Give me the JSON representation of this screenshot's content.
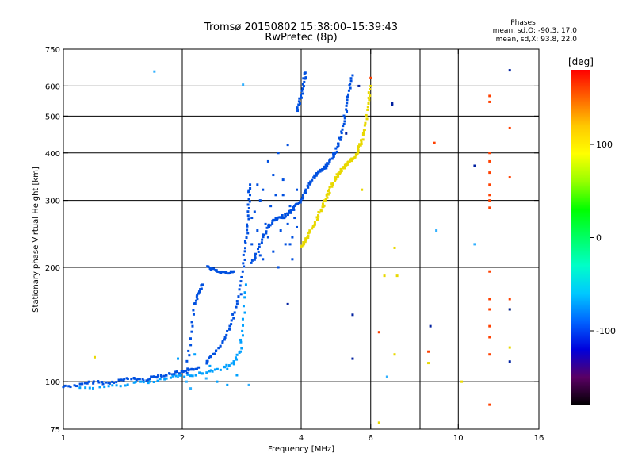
{
  "header": {
    "title_line1": "Tromsø 20150802 15:38:00–15:39:43",
    "title_line2": "RwPretec (8p)",
    "phases_heading": "Phases",
    "phase_o": "mean, sd,O: -90.3, 17.0",
    "phase_x": "mean, sd,X: 93.8, 22.0"
  },
  "chart_data": {
    "type": "scatter",
    "xlabel": "Frequency [MHz]",
    "ylabel": "Stationary phase Virtual Height [km]",
    "x_scale": "log",
    "y_scale": "log",
    "xlim": [
      1,
      16
    ],
    "ylim": [
      75,
      750
    ],
    "x_ticks": [
      1,
      2,
      4,
      6,
      10,
      16
    ],
    "x_tick_labels": [
      "1",
      "2",
      "4",
      "6",
      "10",
      "16"
    ],
    "x_gridlines": [
      2,
      4,
      6,
      8,
      10
    ],
    "y_ticks": [
      75,
      100,
      200,
      300,
      400,
      500,
      600,
      750
    ],
    "y_tick_labels": [
      "75",
      "100",
      "200",
      "300",
      "400",
      "500",
      "600",
      "750"
    ],
    "y_gridlines": [
      100,
      200,
      300,
      400,
      500,
      600
    ],
    "grid": true,
    "colorbar": {
      "label": "[deg]",
      "range": [
        -180,
        180
      ],
      "ticks": [
        100,
        0,
        -100
      ],
      "tick_labels": [
        "100",
        "0",
        "-100"
      ],
      "colors": [
        "#000000",
        "#5a0064",
        "#0000dc",
        "#0064ff",
        "#00c8ff",
        "#00ffc8",
        "#00ff64",
        "#00ff00",
        "#96ff00",
        "#ffff00",
        "#ffc800",
        "#ff6400",
        "#ff0000"
      ]
    },
    "series": [
      {
        "color": "#0050e0",
        "traces": [
          [
            [
              1.0,
              97
            ],
            [
              1.1,
              98
            ],
            [
              1.2,
              100
            ],
            [
              1.3,
              99
            ],
            [
              1.4,
              101
            ],
            [
              1.5,
              102
            ],
            [
              1.6,
              101
            ],
            [
              1.7,
              103
            ],
            [
              1.8,
              104
            ],
            [
              1.9,
              105
            ],
            [
              2.0,
              106
            ],
            [
              2.1,
              107
            ],
            [
              2.2,
              109
            ]
          ],
          [
            [
              2.3,
              112
            ],
            [
              2.4,
              118
            ],
            [
              2.5,
              125
            ],
            [
              2.6,
              135
            ],
            [
              2.7,
              150
            ],
            [
              2.8,
              170
            ],
            [
              2.85,
              200
            ],
            [
              2.9,
              230
            ],
            [
              2.93,
              260
            ],
            [
              2.95,
              300
            ],
            [
              2.97,
              330
            ]
          ],
          [
            [
              3.0,
              205
            ],
            [
              3.1,
              220
            ],
            [
              3.2,
              240
            ],
            [
              3.3,
              255
            ],
            [
              3.4,
              265
            ],
            [
              3.5,
              268
            ],
            [
              3.6,
              272
            ],
            [
              3.7,
              276
            ],
            [
              3.8,
              282
            ],
            [
              3.9,
              292
            ],
            [
              4.0,
              300
            ],
            [
              4.1,
              315
            ],
            [
              4.2,
              330
            ],
            [
              4.3,
              345
            ],
            [
              4.4,
              355
            ],
            [
              4.5,
              360
            ],
            [
              4.6,
              365
            ],
            [
              4.7,
              375
            ],
            [
              4.8,
              390
            ],
            [
              4.9,
              405
            ],
            [
              5.0,
              430
            ],
            [
              5.1,
              470
            ],
            [
              5.2,
              520
            ],
            [
              5.3,
              580
            ],
            [
              5.4,
              640
            ]
          ],
          [
            [
              3.9,
              520
            ],
            [
              4.0,
              560
            ],
            [
              4.05,
              610
            ],
            [
              4.1,
              650
            ]
          ],
          [
            [
              2.05,
              105
            ],
            [
              2.1,
              130
            ],
            [
              2.15,
              160
            ],
            [
              2.2,
              170
            ],
            [
              2.25,
              180
            ]
          ],
          [
            [
              2.3,
              200
            ],
            [
              2.4,
              198
            ],
            [
              2.5,
              195
            ],
            [
              2.6,
              193
            ],
            [
              2.7,
              195
            ]
          ]
        ],
        "scatter": [
          [
            3.0,
            230
          ],
          [
            3.05,
            280
          ],
          [
            3.1,
            250
          ],
          [
            3.15,
            300
          ],
          [
            3.2,
            210
          ],
          [
            3.25,
            260
          ],
          [
            3.3,
            240
          ],
          [
            3.35,
            290
          ],
          [
            3.4,
            220
          ],
          [
            3.45,
            270
          ],
          [
            3.5,
            200
          ],
          [
            3.55,
            250
          ],
          [
            3.6,
            310
          ],
          [
            3.65,
            230
          ],
          [
            3.7,
            260
          ],
          [
            3.75,
            290
          ],
          [
            3.8,
            240
          ],
          [
            3.85,
            270
          ],
          [
            3.9,
            255
          ],
          [
            3.2,
            320
          ],
          [
            3.4,
            350
          ],
          [
            3.6,
            340
          ],
          [
            3.3,
            380
          ],
          [
            3.7,
            420
          ],
          [
            3.5,
            400
          ],
          [
            3.1,
            330
          ],
          [
            3.8,
            210
          ],
          [
            3.0,
            270
          ],
          [
            3.9,
            320
          ],
          [
            3.15,
            215
          ],
          [
            3.45,
            310
          ],
          [
            3.75,
            230
          ]
        ]
      },
      {
        "color": "#00a0ff",
        "traces": [
          [
            [
              1.1,
              96
            ],
            [
              1.3,
              97
            ],
            [
              1.5,
              99
            ],
            [
              1.7,
              100
            ],
            [
              1.9,
              103
            ],
            [
              2.1,
              104
            ],
            [
              2.3,
              106
            ],
            [
              2.5,
              108
            ],
            [
              2.7,
              112
            ],
            [
              2.8,
              120
            ],
            [
              2.85,
              140
            ],
            [
              2.9,
              180
            ]
          ]
        ],
        "scatter": [
          [
            2.45,
            100
          ],
          [
            2.6,
            108
          ],
          [
            1.95,
            115
          ],
          [
            2.15,
            118
          ],
          [
            2.35,
            110
          ],
          [
            2.6,
            98
          ],
          [
            2.75,
            104
          ]
        ]
      },
      {
        "color": "#e8d800",
        "traces": [
          [
            [
              4.0,
              228
            ],
            [
              4.1,
              235
            ],
            [
              4.2,
              245
            ],
            [
              4.3,
              258
            ],
            [
              4.4,
              270
            ],
            [
              4.5,
              285
            ],
            [
              4.6,
              300
            ],
            [
              4.7,
              315
            ],
            [
              4.8,
              330
            ],
            [
              4.9,
              345
            ],
            [
              5.0,
              355
            ],
            [
              5.1,
              365
            ],
            [
              5.2,
              372
            ],
            [
              5.3,
              378
            ],
            [
              5.4,
              385
            ],
            [
              5.5,
              395
            ],
            [
              5.6,
              410
            ],
            [
              5.7,
              430
            ],
            [
              5.8,
              470
            ],
            [
              5.9,
              540
            ],
            [
              6.0,
              600
            ]
          ]
        ],
        "scatter": [
          [
            1.2,
            116
          ],
          [
            6.3,
            78
          ],
          [
            6.5,
            190
          ],
          [
            6.9,
            118
          ],
          [
            7.0,
            190
          ],
          [
            8.4,
            112
          ],
          [
            10.2,
            100
          ],
          [
            13.5,
            123
          ],
          [
            13.5,
            155
          ],
          [
            5.7,
            320
          ],
          [
            6.9,
            225
          ]
        ]
      },
      {
        "color": "#ff4000",
        "traces": [],
        "scatter": [
          [
            12.0,
            565
          ],
          [
            12.0,
            545
          ],
          [
            12.0,
            400
          ],
          [
            12.0,
            380
          ],
          [
            12.0,
            355
          ],
          [
            12.0,
            330
          ],
          [
            12.0,
            310
          ],
          [
            12.0,
            300
          ],
          [
            12.0,
            287
          ],
          [
            12.0,
            195
          ],
          [
            12.0,
            165
          ],
          [
            12.0,
            155
          ],
          [
            12.0,
            140
          ],
          [
            12.0,
            131
          ],
          [
            12.0,
            118
          ],
          [
            12.0,
            87
          ],
          [
            13.5,
            465
          ],
          [
            13.5,
            345
          ],
          [
            13.5,
            165
          ],
          [
            8.7,
            425
          ],
          [
            6.0,
            630
          ],
          [
            6.3,
            135
          ],
          [
            8.4,
            120
          ]
        ]
      },
      {
        "color": "#0020a0",
        "traces": [],
        "scatter": [
          [
            13.5,
            660
          ],
          [
            13.5,
            155
          ],
          [
            13.5,
            113
          ],
          [
            5.4,
            150
          ],
          [
            5.4,
            115
          ],
          [
            6.8,
            535
          ],
          [
            11.0,
            370
          ],
          [
            8.5,
            140
          ],
          [
            5.6,
            600
          ],
          [
            6.8,
            540
          ],
          [
            3.7,
            160
          ],
          [
            5.2,
            450
          ]
        ]
      },
      {
        "color": "#30b0ff",
        "traces": [],
        "scatter": [
          [
            1.7,
            655
          ],
          [
            2.85,
            605
          ],
          [
            8.8,
            250
          ],
          [
            11.0,
            230
          ],
          [
            6.6,
            103
          ],
          [
            1.95,
            103
          ],
          [
            2.05,
            100
          ],
          [
            2.3,
            102
          ],
          [
            2.1,
            96
          ],
          [
            2.95,
            98
          ]
        ]
      }
    ]
  }
}
